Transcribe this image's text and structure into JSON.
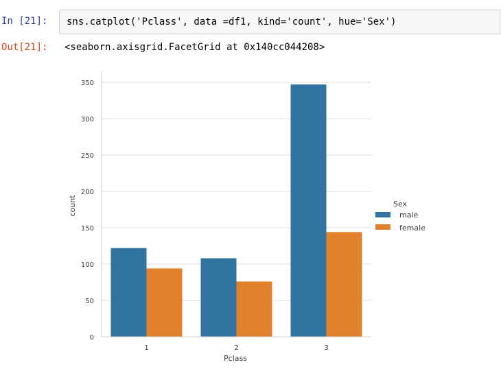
{
  "cell": {
    "in_prompt": "In [21]:",
    "code": "sns.catplot('Pclass', data =df1, kind='count', hue='Sex')",
    "out_prompt": "Out[21]:",
    "output_text": "<seaborn.axisgrid.FacetGrid at 0x140cc044208>"
  },
  "colors": {
    "male": "#3274a1",
    "female": "#e1812c",
    "grid": "#dcdcdc"
  },
  "chart_data": {
    "type": "bar",
    "categories": [
      "1",
      "2",
      "3"
    ],
    "series": [
      {
        "name": "male",
        "values": [
          122,
          108,
          347
        ]
      },
      {
        "name": "female",
        "values": [
          94,
          76,
          144
        ]
      }
    ],
    "xlabel": "Pclass",
    "ylabel": "count",
    "ylim": [
      0,
      360
    ],
    "yticks": [
      0,
      50,
      100,
      150,
      200,
      250,
      300,
      350
    ],
    "legend": {
      "title": "Sex",
      "placement": "right"
    },
    "grid": "horizontal"
  }
}
